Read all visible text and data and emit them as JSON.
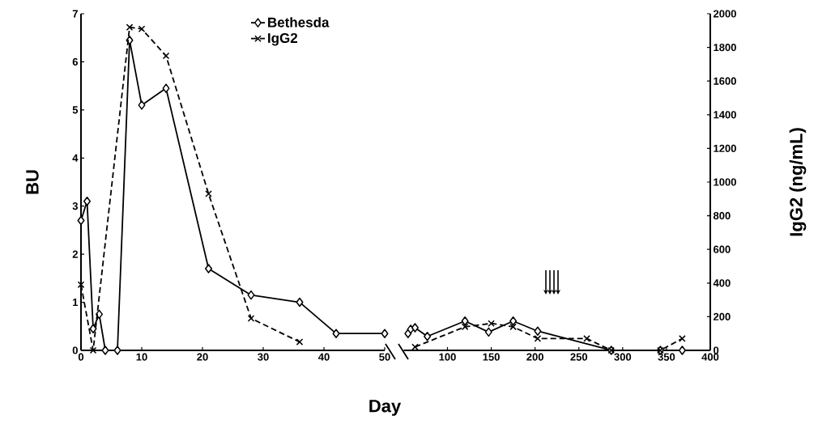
{
  "chart_data": [
    {
      "type": "line",
      "ylabel": "BU",
      "xlabel": "Day",
      "legend": "top",
      "xlim": [
        0,
        50
      ],
      "xticks": [
        0,
        10,
        20,
        30,
        40,
        50
      ],
      "ylim": [
        0,
        7
      ],
      "yticks": [
        0,
        1,
        2,
        3,
        4,
        5,
        6,
        7
      ],
      "y2lim": [
        0,
        2000
      ],
      "series": [
        {
          "name": "Bethesda",
          "color": "#000000",
          "marker": "diamond",
          "line_style": "solid",
          "x": [
            0,
            1,
            2,
            3,
            4,
            6,
            8,
            10,
            14,
            21,
            28,
            36,
            42,
            50
          ],
          "values": [
            2.7,
            3.1,
            0.45,
            0.75,
            0,
            0,
            6.45,
            5.1,
            5.45,
            1.7,
            1.15,
            1.0,
            0.35,
            0.35
          ]
        },
        {
          "name": "IgG2",
          "color": "#000000",
          "marker": "cross",
          "line_style": "dashed",
          "axis": "y2",
          "x": [
            0,
            2,
            8,
            10,
            14,
            21,
            28,
            36
          ],
          "values": [
            390,
            0,
            1920,
            1910,
            1750,
            930,
            190,
            50
          ]
        }
      ]
    },
    {
      "type": "line",
      "y2label": "IgG2 (ng/mL)",
      "tick_labels": "xy2",
      "xlim": [
        50,
        400
      ],
      "xticks": [
        100,
        150,
        200,
        250,
        300,
        350,
        400
      ],
      "ylim": [
        0,
        7
      ],
      "y2lim": [
        0,
        2000
      ],
      "y2ticks": [
        0,
        200,
        400,
        600,
        800,
        1000,
        1200,
        1400,
        1600,
        1800,
        2000
      ],
      "series": [
        {
          "color": "#000000",
          "marker": "diamond",
          "line_style": "solid",
          "x": [
            55,
            58,
            63,
            77,
            120,
            147,
            175,
            203,
            287,
            343,
            368
          ],
          "values": [
            0.35,
            0.44,
            0.47,
            0.29,
            0.61,
            0.38,
            0.61,
            0.4,
            0,
            0,
            0
          ]
        },
        {
          "color": "#000000",
          "marker": "cross",
          "line_style": "dashed",
          "axis": "y2",
          "x": [
            63,
            120,
            150,
            175,
            203,
            259,
            287,
            343,
            368
          ],
          "values": [
            20,
            140,
            160,
            140,
            70,
            70,
            0,
            0,
            70
          ]
        }
      ]
    }
  ]
}
